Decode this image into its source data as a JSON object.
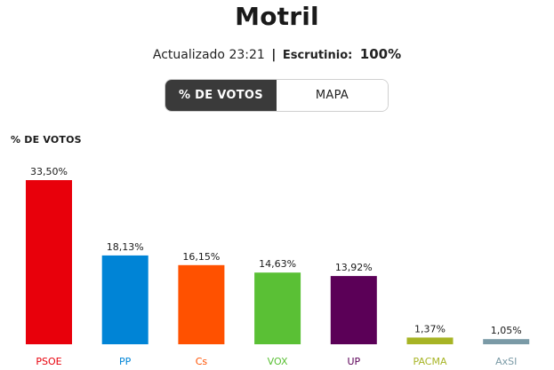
{
  "header": {
    "title": "Motril",
    "updated": "Actualizado 23:21",
    "separator": "|",
    "scrutiny_label": "Escrutinio:",
    "scrutiny_value": "100%"
  },
  "tabs": [
    {
      "label": "% DE VOTOS",
      "active": true
    },
    {
      "label": "MAPA",
      "active": false
    }
  ],
  "chart_data": {
    "type": "bar",
    "title": "% DE VOTOS",
    "categories": [
      "PSOE",
      "PP",
      "Cs",
      "VOX",
      "UP",
      "PACMA",
      "AxSI"
    ],
    "values": [
      33.5,
      18.13,
      16.15,
      14.63,
      13.92,
      1.37,
      1.05
    ],
    "value_labels": [
      "33,50%",
      "18,13%",
      "16,15%",
      "14,63%",
      "13,92%",
      "1,37%",
      "1,05%"
    ],
    "colors": [
      "#e8000b",
      "#0084d6",
      "#ff5100",
      "#5ac035",
      "#5b0057",
      "#a7b425",
      "#7a9aa6"
    ],
    "label_colors": [
      "#e8000b",
      "#0084d6",
      "#ff5100",
      "#5ac035",
      "#5b0057",
      "#a7b425",
      "#7a9aa6"
    ],
    "grid": false,
    "legend": "none"
  }
}
